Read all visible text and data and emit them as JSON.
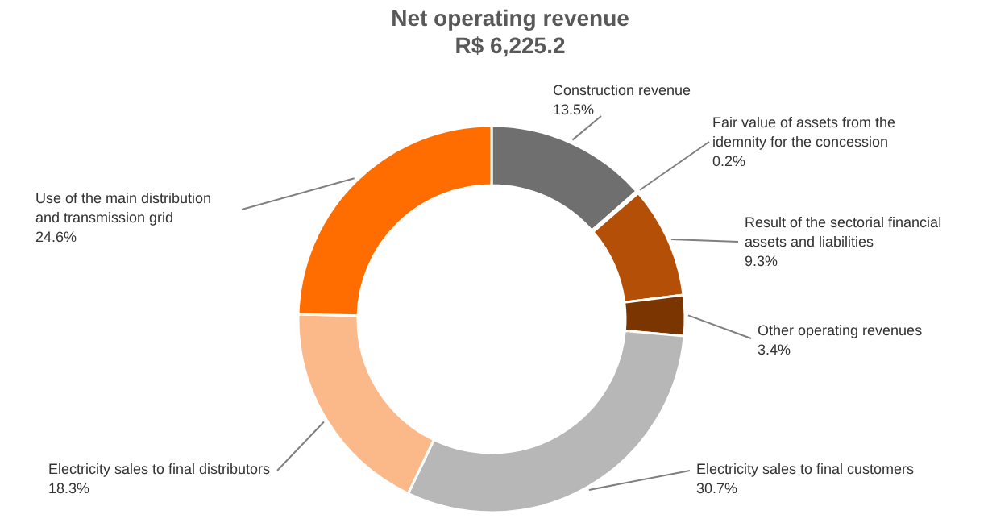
{
  "chart_data": {
    "type": "donut",
    "title": "Net operating revenue",
    "subtitle": "R$ 6,225.2",
    "categories": [
      "Construction revenue",
      "Fair value of assets from the idemnity for the concession",
      "Result of the sectorial financial assets and liabilities",
      "Other operating revenues",
      "Electricity sales to final customers",
      "Electricity sales to final distributors",
      "Use of the main distribution and transmission grid"
    ],
    "values": [
      13.5,
      0.2,
      9.3,
      3.4,
      30.7,
      18.3,
      24.6
    ],
    "value_labels": [
      "13.5%",
      "0.2%",
      "9.3%",
      "3.4%",
      "30.7%",
      "18.3%",
      "24.6%"
    ],
    "colors": [
      "#6f6f6f",
      "#8b8b8b",
      "#b34f06",
      "#7a3500",
      "#b7b7b7",
      "#fbb98a",
      "#ff6d00"
    ]
  }
}
